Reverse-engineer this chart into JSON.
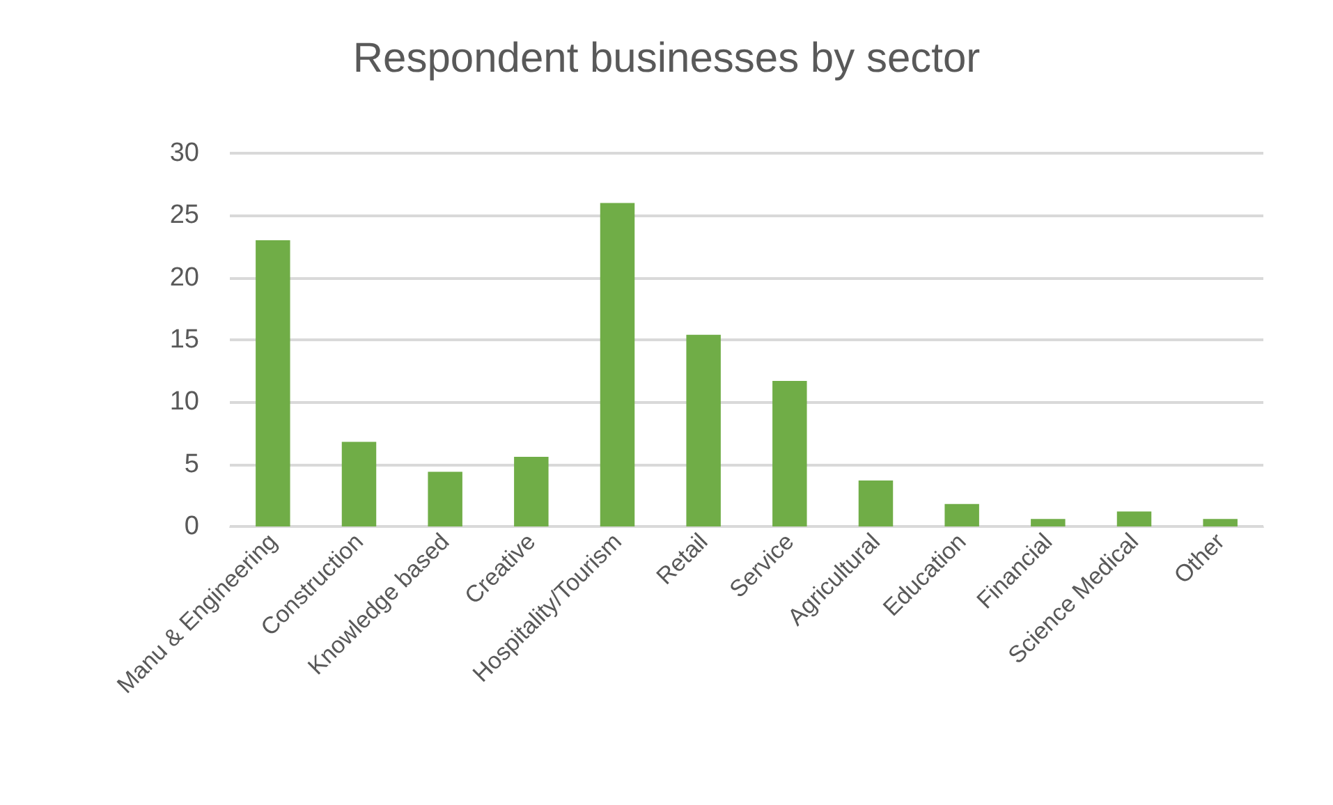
{
  "chart_data": {
    "type": "bar",
    "title": "Respondent businesses by sector",
    "categories": [
      "Manu & Engineering",
      "Construction",
      "Knowledge based",
      "Creative",
      "Hospitality/Tourism",
      "Retail",
      "Service",
      "Agricultural",
      "Education",
      "Financial",
      "Science Medical",
      "Other"
    ],
    "values": [
      23,
      6.8,
      4.4,
      5.6,
      26,
      15.4,
      11.7,
      3.7,
      1.8,
      0.6,
      1.2,
      0.6
    ],
    "color": "#70ad47",
    "ylim": [
      0,
      30
    ],
    "yticks": [
      0,
      5,
      10,
      15,
      20,
      25,
      30
    ],
    "grid": "y"
  }
}
